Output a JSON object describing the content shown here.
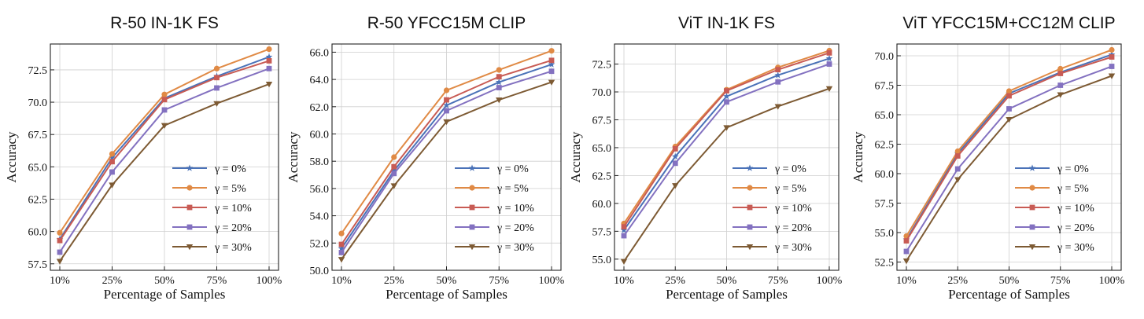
{
  "figure": {
    "colors": {
      "gamma_0": "#4a72b8",
      "gamma_5": "#e08a45",
      "gamma_10": "#c85b54",
      "gamma_20": "#8371c0",
      "gamma_30": "#7d5a33"
    }
  },
  "chart_data": [
    {
      "type": "line",
      "title": "R-50 IN-1K FS",
      "xlabel": "Percentage of Samples",
      "ylabel": "Accuracy",
      "categories": [
        "10%",
        "25%",
        "50%",
        "75%",
        "100%"
      ],
      "ylim": [
        57.0,
        74.5
      ],
      "yticks": [
        "57.5",
        "60.0",
        "62.5",
        "65.0",
        "67.5",
        "70.0",
        "72.5"
      ],
      "grid": true,
      "legend_position": "lower-right",
      "series": [
        {
          "name": "γ = 0%",
          "marker": "star",
          "color_key": "gamma_0",
          "values": [
            59.4,
            65.7,
            70.3,
            72.0,
            73.5
          ]
        },
        {
          "name": "γ = 5%",
          "marker": "circle",
          "color_key": "gamma_5",
          "values": [
            59.9,
            66.0,
            70.6,
            72.6,
            74.1
          ]
        },
        {
          "name": "γ = 10%",
          "marker": "square",
          "color_key": "gamma_10",
          "values": [
            59.3,
            65.4,
            70.2,
            71.9,
            73.2
          ]
        },
        {
          "name": "γ = 20%",
          "marker": "square",
          "color_key": "gamma_20",
          "values": [
            58.4,
            64.6,
            69.4,
            71.1,
            72.6
          ]
        },
        {
          "name": "γ = 30%",
          "marker": "triangle-down",
          "color_key": "gamma_30",
          "values": [
            57.7,
            63.6,
            68.2,
            69.9,
            71.4
          ]
        }
      ]
    },
    {
      "type": "line",
      "title": "R-50 YFCC15M CLIP",
      "xlabel": "Percentage of Samples",
      "ylabel": "Accuracy",
      "categories": [
        "10%",
        "25%",
        "50%",
        "75%",
        "100%"
      ],
      "ylim": [
        50.0,
        66.6
      ],
      "yticks": [
        "50.0",
        "52.0",
        "54.0",
        "56.0",
        "58.0",
        "60.0",
        "62.0",
        "64.0",
        "66.0"
      ],
      "grid": true,
      "legend_position": "lower-right",
      "series": [
        {
          "name": "γ = 0%",
          "marker": "star",
          "color_key": "gamma_0",
          "values": [
            51.6,
            57.3,
            62.1,
            63.8,
            65.1
          ]
        },
        {
          "name": "γ = 5%",
          "marker": "circle",
          "color_key": "gamma_5",
          "values": [
            52.7,
            58.3,
            63.2,
            64.7,
            66.1
          ]
        },
        {
          "name": "γ = 10%",
          "marker": "square",
          "color_key": "gamma_10",
          "values": [
            51.9,
            57.6,
            62.5,
            64.2,
            65.4
          ]
        },
        {
          "name": "γ = 20%",
          "marker": "square",
          "color_key": "gamma_20",
          "values": [
            51.3,
            57.1,
            61.7,
            63.4,
            64.6
          ]
        },
        {
          "name": "γ = 30%",
          "marker": "triangle-down",
          "color_key": "gamma_30",
          "values": [
            50.8,
            56.2,
            60.9,
            62.5,
            63.8
          ]
        }
      ]
    },
    {
      "type": "line",
      "title": "ViT IN-1K FS",
      "xlabel": "Percentage of Samples",
      "ylabel": "Accuracy",
      "categories": [
        "10%",
        "25%",
        "50%",
        "75%",
        "100%"
      ],
      "ylim": [
        54.0,
        74.3
      ],
      "yticks": [
        "55.0",
        "57.5",
        "60.0",
        "62.5",
        "65.0",
        "67.5",
        "70.0",
        "72.5"
      ],
      "grid": true,
      "legend_position": "lower-right",
      "series": [
        {
          "name": "γ = 0%",
          "marker": "star",
          "color_key": "gamma_0",
          "values": [
            57.6,
            64.2,
            69.6,
            71.5,
            73.0
          ]
        },
        {
          "name": "γ = 5%",
          "marker": "circle",
          "color_key": "gamma_5",
          "values": [
            58.2,
            65.1,
            70.2,
            72.2,
            73.7
          ]
        },
        {
          "name": "γ = 10%",
          "marker": "square",
          "color_key": "gamma_10",
          "values": [
            57.9,
            64.9,
            70.1,
            72.0,
            73.5
          ]
        },
        {
          "name": "γ = 20%",
          "marker": "square",
          "color_key": "gamma_20",
          "values": [
            57.1,
            63.6,
            69.1,
            70.9,
            72.5
          ]
        },
        {
          "name": "γ = 30%",
          "marker": "triangle-down",
          "color_key": "gamma_30",
          "values": [
            54.8,
            61.6,
            66.8,
            68.7,
            70.3
          ]
        }
      ]
    },
    {
      "type": "line",
      "title": "ViT YFCC15M+CC12M CLIP",
      "xlabel": "Percentage of Samples",
      "ylabel": "Accuracy",
      "categories": [
        "10%",
        "25%",
        "50%",
        "75%",
        "100%"
      ],
      "ylim": [
        51.8,
        71.0
      ],
      "yticks": [
        "52.5",
        "55.0",
        "57.5",
        "60.0",
        "62.5",
        "65.0",
        "67.5",
        "70.0"
      ],
      "grid": true,
      "legend_position": "lower-right",
      "series": [
        {
          "name": "γ = 0%",
          "marker": "star",
          "color_key": "gamma_0",
          "values": [
            54.4,
            61.7,
            66.8,
            68.6,
            70.1
          ]
        },
        {
          "name": "γ = 5%",
          "marker": "circle",
          "color_key": "gamma_5",
          "values": [
            54.7,
            61.9,
            67.0,
            68.9,
            70.5
          ]
        },
        {
          "name": "γ = 10%",
          "marker": "square",
          "color_key": "gamma_10",
          "values": [
            54.3,
            61.5,
            66.6,
            68.5,
            69.9
          ]
        },
        {
          "name": "γ = 20%",
          "marker": "square",
          "color_key": "gamma_20",
          "values": [
            53.4,
            60.4,
            65.5,
            67.5,
            69.1
          ]
        },
        {
          "name": "γ = 30%",
          "marker": "triangle-down",
          "color_key": "gamma_30",
          "values": [
            52.6,
            59.5,
            64.6,
            66.7,
            68.3
          ]
        }
      ]
    }
  ]
}
